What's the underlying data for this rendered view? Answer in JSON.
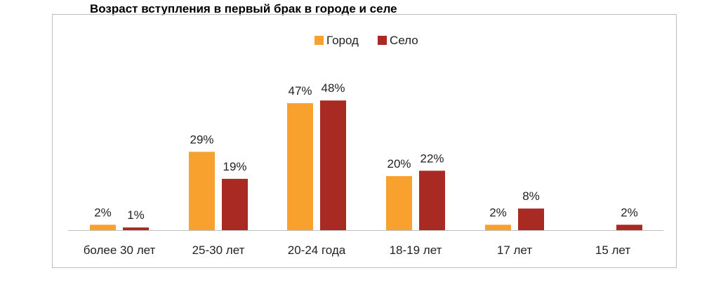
{
  "chart_data": {
    "type": "bar",
    "title": "Возраст вступления в первый брак в городе и селе",
    "categories": [
      "более 30 лет",
      "25-30 лет",
      "20-24 года",
      "18-19 лет",
      "17 лет",
      "15 лет"
    ],
    "series": [
      {
        "name": "Город",
        "color": "#F9A12E",
        "values": [
          2,
          29,
          47,
          20,
          2,
          0
        ],
        "labels": [
          "2%",
          "29%",
          "47%",
          "20%",
          "2%",
          ""
        ]
      },
      {
        "name": "Село",
        "color": "#A82A22",
        "values": [
          1,
          19,
          48,
          22,
          8,
          2
        ],
        "labels": [
          "1%",
          "19%",
          "48%",
          "22%",
          "8%",
          "2%"
        ]
      }
    ],
    "ylim": [
      0,
      55
    ],
    "grid": false,
    "legend_position": "top-center"
  }
}
